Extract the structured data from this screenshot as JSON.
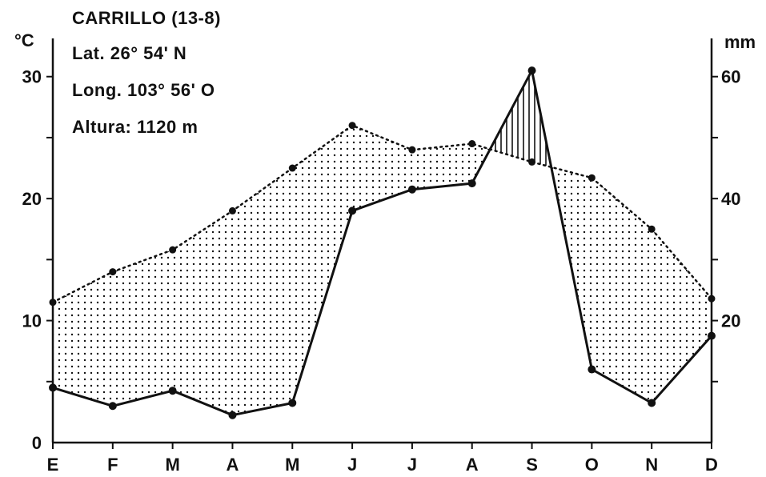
{
  "station": {
    "name": "CARRILLO (13-8)",
    "lat": "Lat. 26° 54' N",
    "long": "Long. 103° 56' O",
    "altitude": "Altura: 1120 m"
  },
  "axes": {
    "left_unit": "°C",
    "right_unit": "mm"
  },
  "chart_data": {
    "type": "line",
    "title": "CARRILLO (13-8)",
    "categories": [
      "E",
      "F",
      "M",
      "A",
      "M",
      "J",
      "J",
      "A",
      "S",
      "O",
      "N",
      "D"
    ],
    "series": [
      {
        "axis": "left",
        "values": [
          11.5,
          14.0,
          15.8,
          19.0,
          22.5,
          26.0,
          24.0,
          24.5,
          23.0,
          21.7,
          17.5,
          11.8
        ]
      },
      {
        "axis": "right",
        "values": [
          9,
          6,
          8.5,
          4.5,
          6.5,
          38,
          41.5,
          42.5,
          61,
          12,
          6.5,
          17.5
        ]
      }
    ],
    "y_left": {
      "label": "°C",
      "ylim": [
        0,
        33
      ],
      "ticks": [
        0,
        10,
        20,
        30
      ]
    },
    "y_right": {
      "label": "mm",
      "ylim": [
        0,
        66
      ],
      "ticks": [
        20,
        40,
        60
      ]
    },
    "fill_dry": "dotted",
    "fill_wet": "vertical-hatch",
    "colors": {
      "ink": "#111111"
    }
  }
}
